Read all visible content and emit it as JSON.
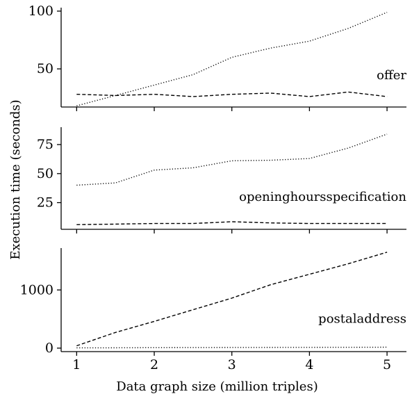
{
  "chart_data": {
    "type": "line",
    "xlabel": "Data graph size (million triples)",
    "ylabel": "Execution time (seconds)",
    "x": [
      1,
      1.5,
      2,
      2.5,
      3,
      3.5,
      4,
      4.5,
      5
    ],
    "xticks": [
      1,
      2,
      3,
      4,
      5
    ],
    "xlim": [
      0.8,
      5.25
    ],
    "panels": [
      {
        "label": "offer",
        "ylim": [
          17,
          103
        ],
        "yticks": [
          50,
          100
        ],
        "series": [
          {
            "style": "dashed",
            "values": [
              28,
              27,
              28,
              26,
              28,
              29,
              26,
              30,
              26
            ]
          },
          {
            "style": "dotted",
            "values": [
              18,
              27,
              36,
              45,
              60,
              68,
              74,
              85,
              99
            ]
          }
        ]
      },
      {
        "label": "openinghoursspecification",
        "ylim": [
          2,
          90
        ],
        "yticks": [
          25,
          50,
          75
        ],
        "series": [
          {
            "style": "dashed",
            "values": [
              6,
              6.5,
              7,
              7,
              8.5,
              7.5,
              7,
              7,
              7
            ]
          },
          {
            "style": "dotted",
            "values": [
              40,
              42,
              53,
              55,
              61,
              61.5,
              63,
              72,
              84
            ]
          }
        ]
      },
      {
        "label": "postaladdress",
        "ylim": [
          -60,
          1720
        ],
        "yticks": [
          0,
          1000
        ],
        "series": [
          {
            "style": "dashed",
            "values": [
              40,
              270,
              460,
              660,
              860,
              1090,
              1270,
              1450,
              1650
            ]
          },
          {
            "style": "dotted",
            "values": [
              5,
              6,
              8,
              9,
              10,
              12,
              13,
              14,
              16
            ]
          }
        ]
      }
    ]
  }
}
